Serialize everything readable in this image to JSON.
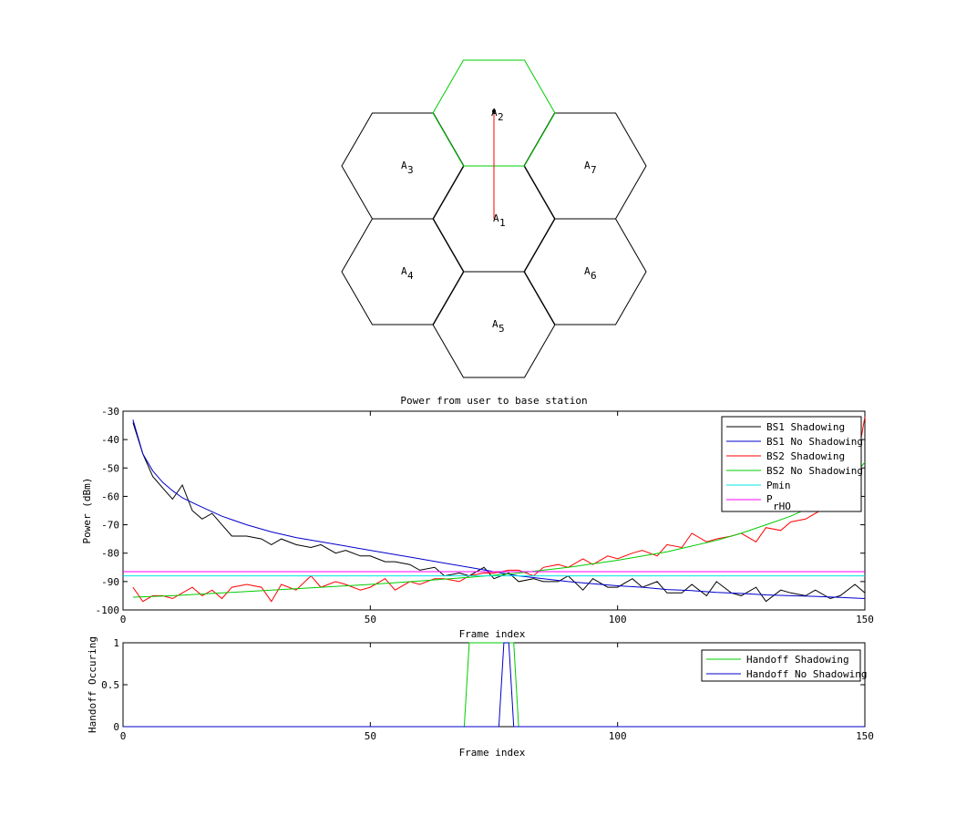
{
  "hex_map": {
    "cells": [
      {
        "label": "A",
        "sub": "1",
        "highlight": false
      },
      {
        "label": "A",
        "sub": "2",
        "highlight": true
      },
      {
        "label": "A",
        "sub": "3",
        "highlight": false
      },
      {
        "label": "A",
        "sub": "4",
        "highlight": false
      },
      {
        "label": "A",
        "sub": "5",
        "highlight": false
      },
      {
        "label": "A",
        "sub": "6",
        "highlight": false
      },
      {
        "label": "A",
        "sub": "7",
        "highlight": false
      }
    ],
    "highlight_color": "#00cc00",
    "cell_color": "#000000",
    "path_color": "#ff0000"
  },
  "chart_data": [
    {
      "type": "line",
      "title": "Power from user to base station",
      "xlabel": "Frame index",
      "ylabel": "Power (dBm)",
      "xlim": [
        0,
        150
      ],
      "ylim": [
        -100,
        -30
      ],
      "xticks": [
        0,
        50,
        100,
        150
      ],
      "yticks": [
        -100,
        -90,
        -80,
        -70,
        -60,
        -50,
        -40,
        -30
      ],
      "legend_position": "top-right",
      "series": [
        {
          "name": "BS1 Shadowing",
          "color": "#000000",
          "x": [
            2,
            4,
            6,
            8,
            10,
            12,
            14,
            16,
            18,
            20,
            22,
            25,
            28,
            30,
            32,
            35,
            38,
            40,
            43,
            45,
            48,
            50,
            53,
            55,
            58,
            60,
            63,
            65,
            68,
            70,
            73,
            75,
            78,
            80,
            83,
            85,
            88,
            90,
            93,
            95,
            98,
            100,
            103,
            105,
            108,
            110,
            113,
            115,
            118,
            120,
            123,
            125,
            128,
            130,
            133,
            135,
            138,
            140,
            143,
            145,
            148,
            150
          ],
          "y": [
            -34,
            -45,
            -53,
            -57,
            -61,
            -56,
            -65,
            -68,
            -66,
            -70,
            -74,
            -74,
            -75,
            -77,
            -75,
            -77,
            -78,
            -77,
            -80,
            -79,
            -81,
            -81,
            -83,
            -83,
            -84,
            -86,
            -85,
            -88,
            -87,
            -88,
            -85,
            -89,
            -87,
            -90,
            -89,
            -90,
            -90,
            -88,
            -93,
            -89,
            -92,
            -92,
            -89,
            -92,
            -90,
            -94,
            -94,
            -91,
            -95,
            -90,
            -94,
            -95,
            -92,
            -97,
            -93,
            -94,
            -95,
            -93,
            -96,
            -95,
            -91,
            -94
          ]
        },
        {
          "name": "BS1 No Shadowing",
          "color": "#0000cc",
          "x": [
            2,
            4,
            6,
            8,
            10,
            12,
            15,
            20,
            25,
            30,
            35,
            40,
            45,
            50,
            55,
            60,
            65,
            70,
            75,
            80,
            85,
            90,
            95,
            100,
            105,
            110,
            115,
            120,
            125,
            130,
            135,
            140,
            145,
            150
          ],
          "y": [
            -33,
            -45,
            -51,
            -55,
            -58,
            -60.5,
            -63,
            -67,
            -70,
            -72.5,
            -74.5,
            -76,
            -77.5,
            -79,
            -80.5,
            -82,
            -83.5,
            -85,
            -86.5,
            -88,
            -89,
            -90,
            -90.8,
            -91.5,
            -92,
            -92.8,
            -93.2,
            -93.8,
            -94.2,
            -94.7,
            -95,
            -95.2,
            -95.6,
            -96
          ]
        },
        {
          "name": "BS2 Shadowing",
          "color": "#ff0000",
          "x": [
            2,
            4,
            6,
            8,
            10,
            12,
            14,
            16,
            18,
            20,
            22,
            25,
            28,
            30,
            32,
            35,
            38,
            40,
            43,
            45,
            48,
            50,
            53,
            55,
            58,
            60,
            63,
            65,
            68,
            70,
            73,
            75,
            78,
            80,
            83,
            85,
            88,
            90,
            93,
            95,
            98,
            100,
            103,
            105,
            108,
            110,
            113,
            115,
            118,
            120,
            123,
            125,
            128,
            130,
            133,
            135,
            138,
            140,
            143,
            145,
            148,
            150
          ],
          "y": [
            -92,
            -97,
            -95,
            -95,
            -96,
            -94,
            -92,
            -95,
            -93,
            -96,
            -92,
            -91,
            -92,
            -97,
            -91,
            -93,
            -88,
            -92,
            -90,
            -91,
            -93,
            -92,
            -89,
            -93,
            -90,
            -91,
            -89,
            -89,
            -90,
            -88,
            -87,
            -87,
            -86,
            -86,
            -88,
            -85,
            -84,
            -85,
            -82,
            -84,
            -81,
            -82,
            -80,
            -79,
            -81,
            -77,
            -78,
            -73,
            -76,
            -75,
            -74,
            -73,
            -76,
            -71,
            -72,
            -69,
            -68,
            -66,
            -63,
            -58,
            -52,
            -32
          ]
        },
        {
          "name": "BS2 No Shadowing",
          "color": "#00cc00",
          "x": [
            2,
            10,
            20,
            30,
            40,
            50,
            60,
            70,
            80,
            90,
            100,
            110,
            115,
            120,
            125,
            130,
            135,
            140,
            143,
            146,
            148,
            150
          ],
          "y": [
            -95.5,
            -95,
            -94,
            -93,
            -92,
            -91,
            -89.8,
            -88.5,
            -87,
            -85,
            -82.5,
            -79.5,
            -77.5,
            -75.5,
            -73,
            -70,
            -67,
            -63,
            -60,
            -56,
            -52,
            -48
          ]
        },
        {
          "name": "Pmin",
          "color": "#00e5e5",
          "x": [
            0,
            150
          ],
          "y": [
            -88,
            -88
          ]
        },
        {
          "name": "PrHO",
          "color": "#ff00ff",
          "x": [
            0,
            150
          ],
          "y": [
            -86.5,
            -86.5
          ]
        }
      ]
    },
    {
      "type": "line",
      "title": "",
      "xlabel": "Frame index",
      "ylabel": "Handoff Occuring",
      "xlim": [
        0,
        150
      ],
      "ylim": [
        0,
        1
      ],
      "xticks": [
        0,
        50,
        100,
        150
      ],
      "yticks": [
        0,
        0.5,
        1
      ],
      "legend_position": "top-right",
      "series": [
        {
          "name": "Handoff Shadowing",
          "color": "#00cc00",
          "x": [
            0,
            69,
            70,
            70.5,
            78,
            79,
            80,
            150
          ],
          "y": [
            0,
            0,
            1,
            1,
            1,
            1,
            0,
            0
          ]
        },
        {
          "name": "Handoff No Shadowing",
          "color": "#0000cc",
          "x": [
            0,
            76,
            77,
            77.5,
            78,
            79,
            150
          ],
          "y": [
            0,
            0,
            1,
            1,
            1,
            0,
            0
          ]
        }
      ]
    }
  ],
  "legend_labels": {
    "power": [
      "BS1 Shadowing",
      "BS1 No Shadowing",
      "BS2 Shadowing",
      "BS2 No Shadowing",
      "Pmin"
    ],
    "prho_main": "P",
    "prho_sub": "rHO",
    "handoff": [
      "Handoff Shadowing",
      "Handoff No Shadowing"
    ]
  }
}
